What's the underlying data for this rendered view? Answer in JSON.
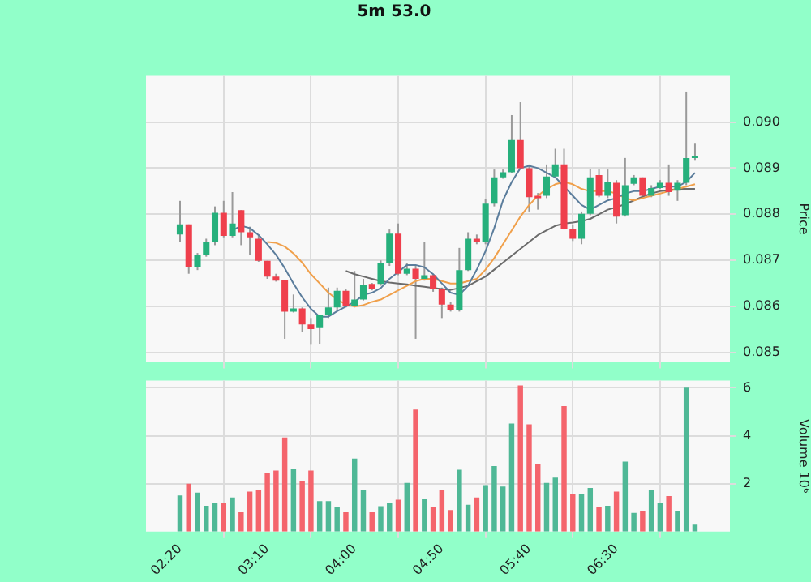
{
  "chart_data": [
    {
      "type": "candlestick",
      "title": "5m 53.0",
      "ylabel": "Price",
      "grid": true,
      "tick_labels": "y",
      "categories": [
        null,
        null,
        null,
        null,
        null,
        null,
        null,
        null,
        null,
        null,
        null,
        null,
        null,
        null,
        null,
        null,
        null,
        null,
        null,
        null,
        null,
        null,
        null,
        null,
        null,
        null,
        null,
        null,
        null,
        null,
        null,
        null,
        null,
        null,
        null,
        null,
        null,
        null,
        null,
        null,
        null,
        null,
        null,
        null,
        null,
        null,
        null,
        null,
        null,
        null,
        null,
        null,
        null,
        null,
        null,
        null,
        null,
        null,
        null,
        null
      ],
      "ohlc": [
        [
          0.08756,
          0.08829,
          0.08739,
          0.08778
        ],
        [
          0.08778,
          0.08778,
          0.08671,
          0.08686
        ],
        [
          0.08686,
          0.08716,
          0.08679,
          0.08711
        ],
        [
          0.08711,
          0.08747,
          0.08708,
          0.08739
        ],
        [
          0.08739,
          0.08817,
          0.08733,
          0.08803
        ],
        [
          0.08803,
          0.08829,
          0.0875,
          0.08753
        ],
        [
          0.08753,
          0.08848,
          0.0875,
          0.0878
        ],
        [
          0.08809,
          0.08809,
          0.08733,
          0.08761
        ],
        [
          0.08761,
          0.08773,
          0.08711,
          0.0875
        ],
        [
          0.08747,
          0.08756,
          0.08697,
          0.08699
        ],
        [
          0.08699,
          0.08699,
          0.0866,
          0.08665
        ],
        [
          0.08665,
          0.08671,
          0.08654,
          0.08656
        ],
        [
          0.08658,
          0.08658,
          0.0853,
          0.08589
        ],
        [
          0.08589,
          0.08626,
          0.08587,
          0.08596
        ],
        [
          0.08596,
          0.08598,
          0.08544,
          0.08561
        ],
        [
          0.08561,
          0.08575,
          0.08517,
          0.08551
        ],
        [
          0.08553,
          0.08581,
          0.08519,
          0.08581
        ],
        [
          0.08581,
          0.08641,
          0.08575,
          0.08598
        ],
        [
          0.08598,
          0.08641,
          0.08592,
          0.08634
        ],
        [
          0.08634,
          0.08637,
          0.08598,
          0.086
        ],
        [
          0.08601,
          0.08677,
          0.08598,
          0.08615
        ],
        [
          0.08615,
          0.0866,
          0.08613,
          0.08646
        ],
        [
          0.08649,
          0.08651,
          0.08635,
          0.08637
        ],
        [
          0.08649,
          0.087,
          0.08645,
          0.08694
        ],
        [
          0.08694,
          0.08767,
          0.08688,
          0.08758
        ],
        [
          0.08758,
          0.0878,
          0.08668,
          0.08671
        ],
        [
          0.08671,
          0.08694,
          0.08668,
          0.08682
        ],
        [
          0.08682,
          0.08688,
          0.0853,
          0.0866
        ],
        [
          0.0866,
          0.08739,
          0.08656,
          0.08668
        ],
        [
          0.08668,
          0.08671,
          0.08632,
          0.08637
        ],
        [
          0.08637,
          0.08641,
          0.08575,
          0.08604
        ],
        [
          0.08604,
          0.08609,
          0.08589,
          0.08592
        ],
        [
          0.08592,
          0.08727,
          0.08589,
          0.08679
        ],
        [
          0.08679,
          0.08761,
          0.08677,
          0.08747
        ],
        [
          0.08747,
          0.08756,
          0.08735,
          0.08739
        ],
        [
          0.08739,
          0.08834,
          0.08735,
          0.08823
        ],
        [
          0.08823,
          0.08897,
          0.08817,
          0.0888
        ],
        [
          0.0888,
          0.08897,
          0.08877,
          0.08891
        ],
        [
          0.08891,
          0.09015,
          0.08889,
          0.08961
        ],
        [
          0.08961,
          0.09043,
          0.08897,
          0.089
        ],
        [
          0.089,
          0.08908,
          0.08806,
          0.08837
        ],
        [
          0.0884,
          0.08846,
          0.0881,
          0.08835
        ],
        [
          0.0884,
          0.08908,
          0.08835,
          0.08882
        ],
        [
          0.08882,
          0.08942,
          0.0888,
          0.08908
        ],
        [
          0.08908,
          0.08942,
          0.08767,
          0.08767
        ],
        [
          0.08767,
          0.08778,
          0.08742,
          0.08747
        ],
        [
          0.08747,
          0.08806,
          0.08735,
          0.08801
        ],
        [
          0.08801,
          0.08899,
          0.08798,
          0.0888
        ],
        [
          0.08885,
          0.08899,
          0.08837,
          0.0884
        ],
        [
          0.0884,
          0.08897,
          0.08835,
          0.08871
        ],
        [
          0.08868,
          0.08874,
          0.0878,
          0.08795
        ],
        [
          0.08798,
          0.08922,
          0.08795,
          0.08863
        ],
        [
          0.08866,
          0.08885,
          0.08863,
          0.0888
        ],
        [
          0.0888,
          0.0888,
          0.08835,
          0.0884
        ],
        [
          0.0884,
          0.08863,
          0.08837,
          0.08857
        ],
        [
          0.08857,
          0.08874,
          0.08855,
          0.08868
        ],
        [
          0.08868,
          0.08908,
          0.0884,
          0.08848
        ],
        [
          0.08851,
          0.08874,
          0.08829,
          0.08868
        ],
        [
          0.08868,
          0.09066,
          0.08863,
          0.08922
        ],
        [
          0.08922,
          0.08953,
          0.08916,
          0.08925
        ]
      ],
      "colors": [
        "#26b07c",
        "#ef3f4c",
        "#26b07c",
        "#26b07c",
        "#26b07c",
        "#ef3f4c",
        "#26b07c",
        "#ef3f4c",
        "#ef3f4c",
        "#ef3f4c",
        "#ef3f4c",
        "#ef3f4c",
        "#ef3f4c",
        "#26b07c",
        "#ef3f4c",
        "#ef3f4c",
        "#26b07c",
        "#26b07c",
        "#26b07c",
        "#ef3f4c",
        "#26b07c",
        "#26b07c",
        "#ef3f4c",
        "#26b07c",
        "#26b07c",
        "#ef3f4c",
        "#26b07c",
        "#ef3f4c",
        "#26b07c",
        "#ef3f4c",
        "#ef3f4c",
        "#ef3f4c",
        "#26b07c",
        "#26b07c",
        "#ef3f4c",
        "#26b07c",
        "#26b07c",
        "#26b07c",
        "#26b07c",
        "#ef3f4c",
        "#ef3f4c",
        "#ef3f4c",
        "#26b07c",
        "#26b07c",
        "#ef3f4c",
        "#ef3f4c",
        "#26b07c",
        "#26b07c",
        "#ef3f4c",
        "#26b07c",
        "#ef3f4c",
        "#26b07c",
        "#26b07c",
        "#ef3f4c",
        "#26b07c",
        "#26b07c",
        "#ef3f4c",
        "#26b07c",
        "#26b07c",
        "#26b07c"
      ],
      "series": [
        {
          "type": "line",
          "color": "#5b7d9c",
          "values": [
            null,
            null,
            null,
            null,
            null,
            null,
            0.08765,
            0.08775,
            0.0877,
            0.08755,
            0.08735,
            0.08712,
            0.08683,
            0.0865,
            0.0862,
            0.08595,
            0.08578,
            0.08578,
            0.0859,
            0.086,
            0.0861,
            0.08625,
            0.0863,
            0.0864,
            0.0866,
            0.08675,
            0.0869,
            0.0869,
            0.08685,
            0.0867,
            0.0865,
            0.0863,
            0.08625,
            0.08645,
            0.0868,
            0.0872,
            0.0877,
            0.0883,
            0.0887,
            0.089,
            0.08905,
            0.089,
            0.0889,
            0.0888,
            0.0886,
            0.0884,
            0.0882,
            0.0881,
            0.0882,
            0.0883,
            0.08835,
            0.08845,
            0.0885,
            0.0885,
            0.08855,
            0.0886,
            0.0886,
            0.0886,
            0.0887,
            0.0889
          ]
        },
        {
          "type": "line",
          "color": "#f0a04b",
          "values": [
            null,
            null,
            null,
            null,
            null,
            null,
            null,
            null,
            null,
            null,
            0.0874,
            0.08738,
            0.0873,
            0.08715,
            0.08695,
            0.0867,
            0.0865,
            0.0863,
            0.08615,
            0.08605,
            0.086,
            0.08603,
            0.0861,
            0.08615,
            0.08625,
            0.08635,
            0.08645,
            0.08655,
            0.0866,
            0.0866,
            0.08655,
            0.0865,
            0.0865,
            0.08655,
            0.0866,
            0.0868,
            0.08705,
            0.08735,
            0.08765,
            0.08795,
            0.0882,
            0.0884,
            0.08855,
            0.08865,
            0.0887,
            0.08865,
            0.08855,
            0.0885,
            0.0885,
            0.0885,
            0.08845,
            0.08835,
            0.0883,
            0.08835,
            0.0884,
            0.08845,
            0.0885,
            0.08855,
            0.0886,
            0.08865
          ]
        },
        {
          "type": "line",
          "color": "#6b6b6b",
          "values": [
            null,
            null,
            null,
            null,
            null,
            null,
            null,
            null,
            null,
            null,
            null,
            null,
            null,
            null,
            null,
            null,
            null,
            null,
            null,
            0.08677,
            0.0867,
            0.08665,
            0.0866,
            0.08655,
            0.08652,
            0.0865,
            0.08648,
            0.08645,
            0.08643,
            0.0864,
            0.08638,
            0.08636,
            0.0864,
            0.08645,
            0.08655,
            0.08665,
            0.0868,
            0.08695,
            0.0871,
            0.08725,
            0.0874,
            0.08755,
            0.08765,
            0.08775,
            0.0878,
            0.08782,
            0.08785,
            0.0879,
            0.088,
            0.0881,
            0.08815,
            0.08822,
            0.0883,
            0.08838,
            0.08845,
            0.0885,
            0.08852,
            0.08855,
            0.08855,
            0.08855
          ]
        }
      ],
      "ylim": [
        0.0848,
        0.091
      ],
      "yticks": [
        0.085,
        0.086,
        0.087,
        0.088,
        0.089,
        {
          "value": 0.09,
          "label": "0.090"
        }
      ]
    },
    {
      "type": "bar",
      "ylabel": "Volume 10⁶",
      "grid": true,
      "categories": [
        "02:20",
        null,
        null,
        null,
        null,
        null,
        null,
        null,
        null,
        null,
        "03:10",
        null,
        null,
        null,
        null,
        null,
        null,
        null,
        null,
        null,
        "04:00",
        null,
        null,
        null,
        null,
        null,
        null,
        null,
        null,
        null,
        "04:50",
        null,
        null,
        null,
        null,
        null,
        null,
        null,
        null,
        null,
        "05:40",
        null,
        null,
        null,
        null,
        null,
        null,
        null,
        null,
        null,
        "06:30",
        null,
        null,
        null,
        null,
        null,
        null,
        null,
        null,
        null
      ],
      "values": [
        1.51,
        2.0,
        1.63,
        1.08,
        1.21,
        1.21,
        1.42,
        0.81,
        1.67,
        1.72,
        2.43,
        2.55,
        3.93,
        2.61,
        2.09,
        2.55,
        1.27,
        1.27,
        1.03,
        0.81,
        3.05,
        1.72,
        0.81,
        1.06,
        1.21,
        1.33,
        2.03,
        5.09,
        1.36,
        1.03,
        1.72,
        0.9,
        2.58,
        1.12,
        1.42,
        1.94,
        2.73,
        1.88,
        4.51,
        6.1,
        4.48,
        2.8,
        2.03,
        2.25,
        5.24,
        1.57,
        1.57,
        1.82,
        1.03,
        1.08,
        1.67,
        2.92,
        0.78,
        0.86,
        1.75,
        1.21,
        1.48,
        0.84,
        6.01,
        0.29
      ],
      "colors": [
        "#4fb896",
        "#f4646c",
        "#4fb896",
        "#4fb896",
        "#4fb896",
        "#f4646c",
        "#4fb896",
        "#f4646c",
        "#f4646c",
        "#f4646c",
        "#f4646c",
        "#f4646c",
        "#f4646c",
        "#4fb896",
        "#f4646c",
        "#f4646c",
        "#4fb896",
        "#4fb896",
        "#4fb896",
        "#f4646c",
        "#4fb896",
        "#4fb896",
        "#f4646c",
        "#4fb896",
        "#4fb896",
        "#f4646c",
        "#4fb896",
        "#f4646c",
        "#4fb896",
        "#f4646c",
        "#f4646c",
        "#f4646c",
        "#4fb896",
        "#4fb896",
        "#f4646c",
        "#4fb896",
        "#4fb896",
        "#4fb896",
        "#4fb896",
        "#f4646c",
        "#f4646c",
        "#f4646c",
        "#4fb896",
        "#4fb896",
        "#f4646c",
        "#f4646c",
        "#4fb896",
        "#4fb896",
        "#f4646c",
        "#4fb896",
        "#f4646c",
        "#4fb896",
        "#4fb896",
        "#f4646c",
        "#4fb896",
        "#4fb896",
        "#f4646c",
        "#4fb896",
        "#4fb896",
        "#4fb896"
      ],
      "ylim": [
        0,
        6.3
      ],
      "yticks": [
        2,
        4,
        6
      ]
    }
  ]
}
